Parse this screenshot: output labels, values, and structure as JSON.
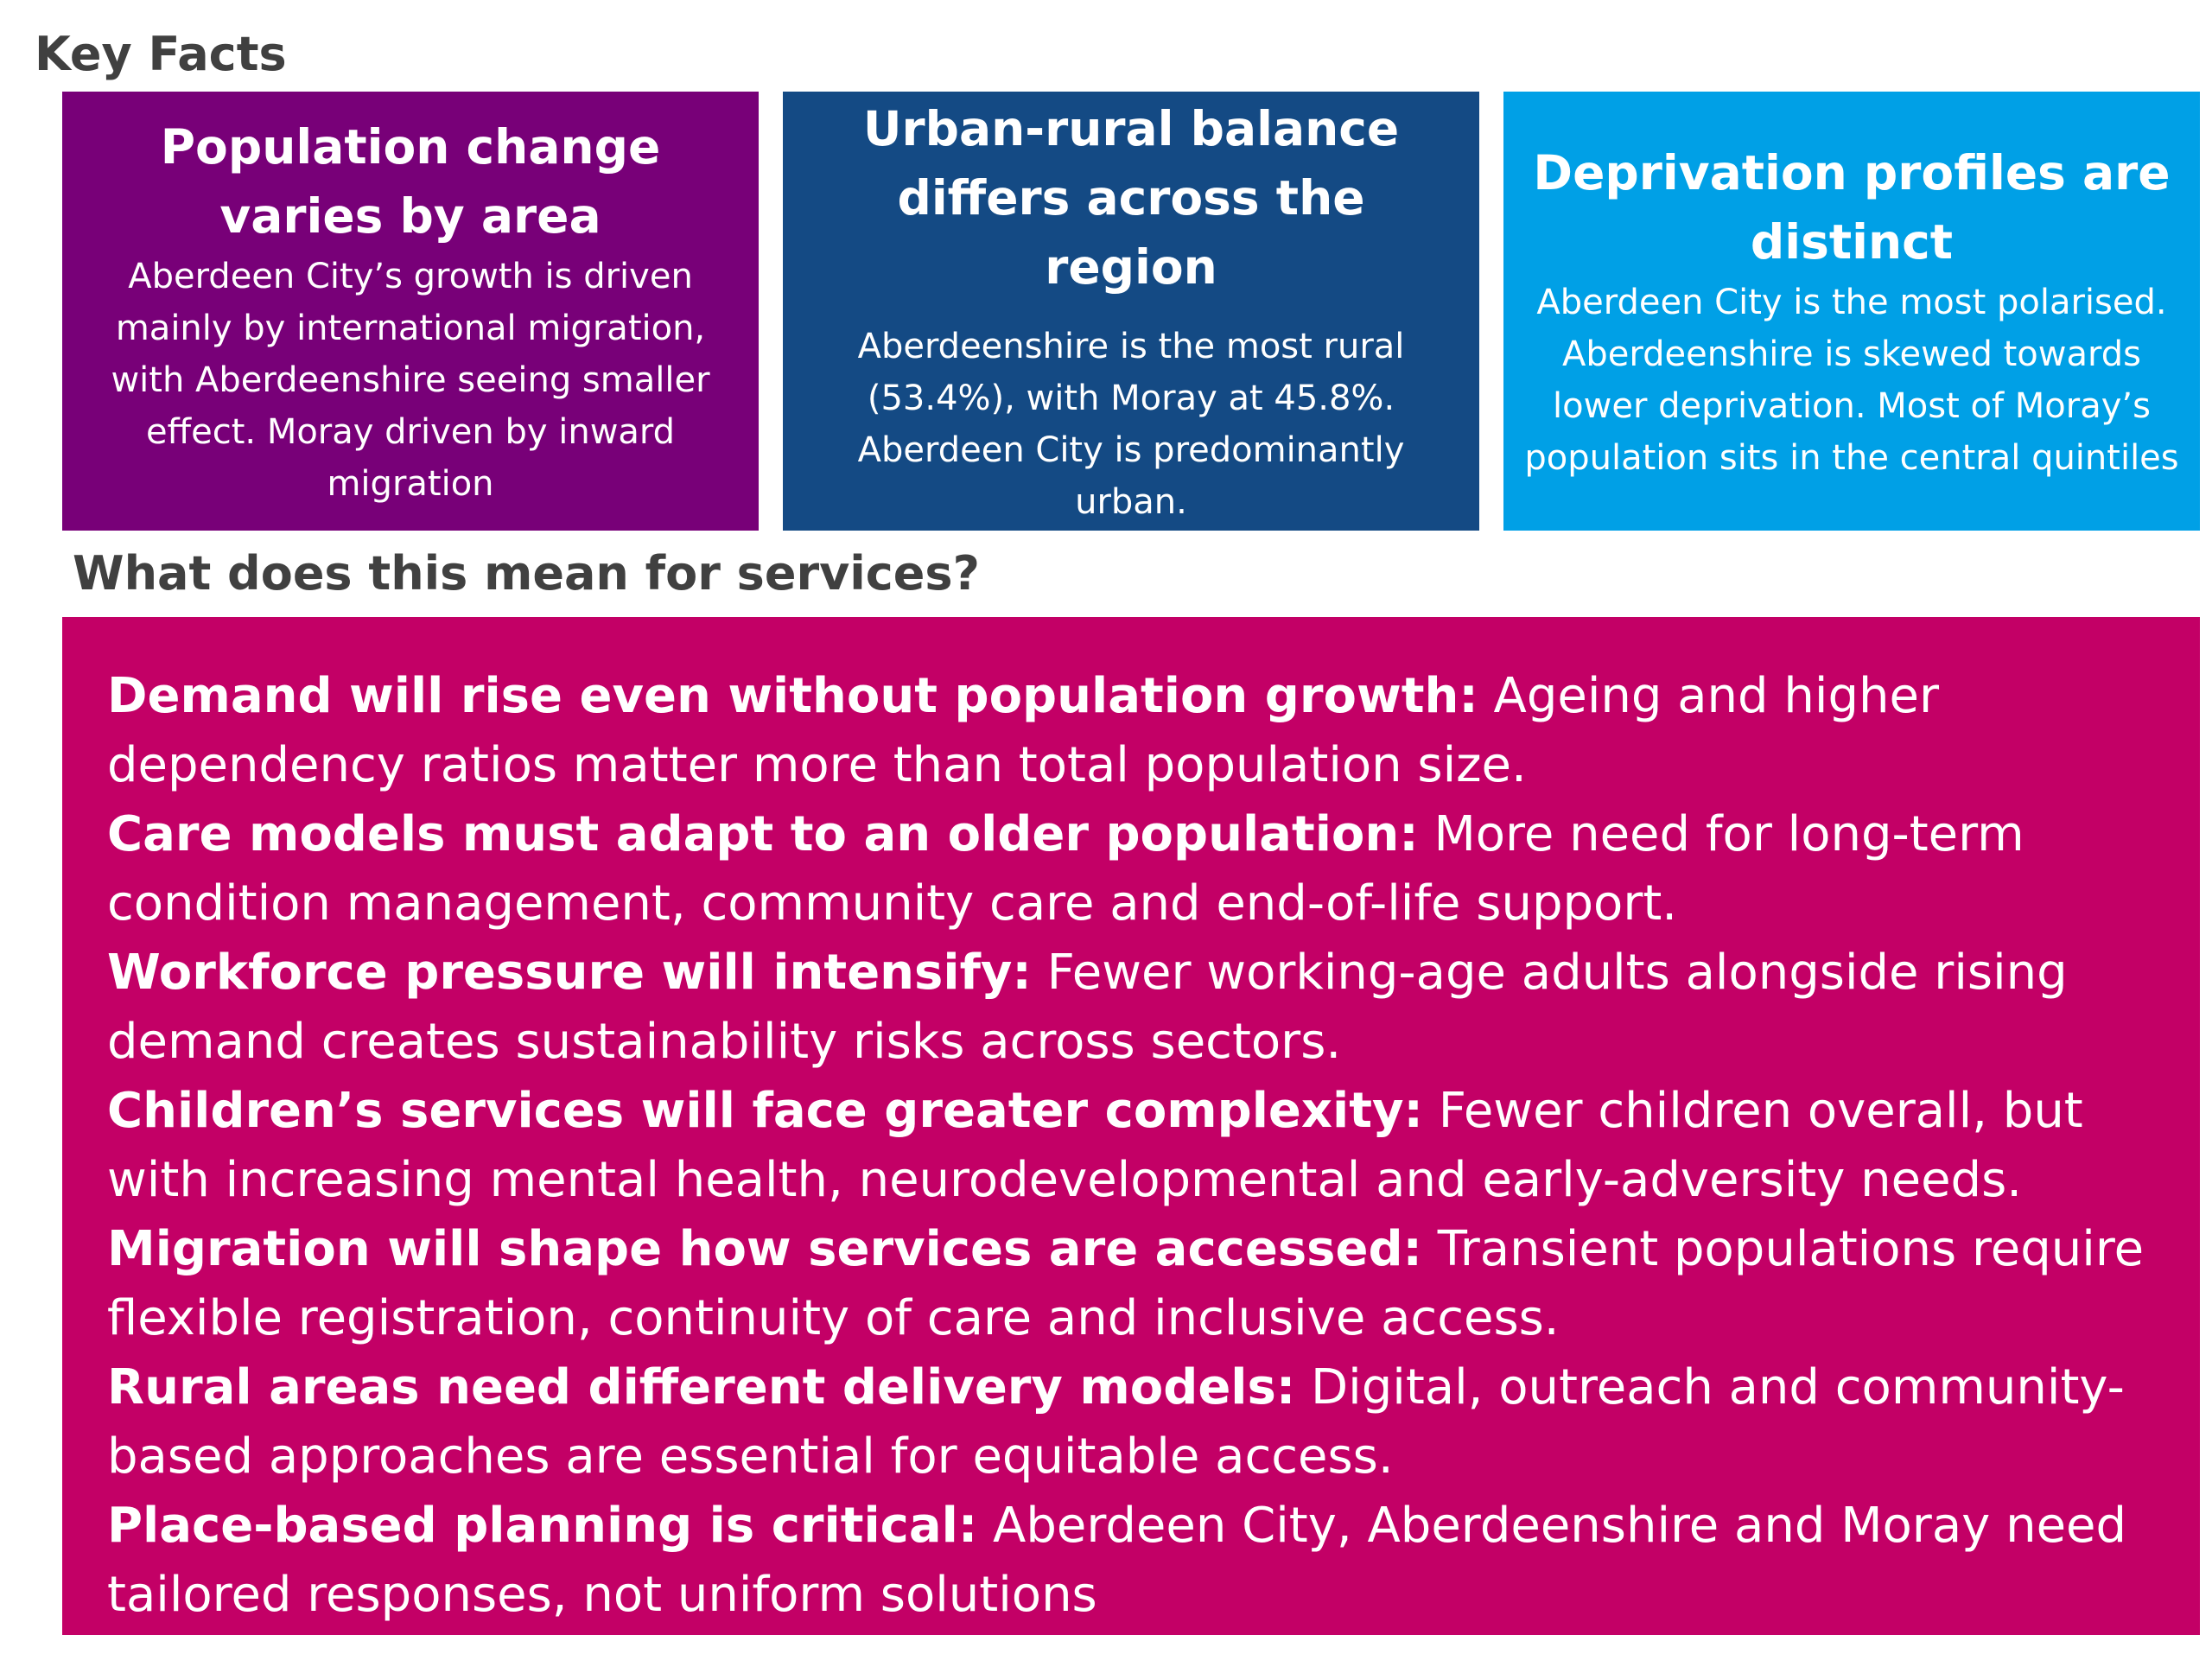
{
  "key_facts": {
    "heading": "Key Facts",
    "cards": [
      {
        "title": "Population change varies by area",
        "body": "Aberdeen City’s growth is driven mainly by international migration, with Aberdeenshire seeing smaller effect. Moray driven by inward migration",
        "color": "#780078"
      },
      {
        "title": "Urban-rural balance differs across the region",
        "body": "Aberdeenshire is the most rural (53.4%), with Moray at 45.8%. Aberdeen City is predominantly urban.",
        "color": "#144a84"
      },
      {
        "title": "Deprivation profiles are distinct",
        "body": "Aberdeen City is the most polarised. Aberdeenshire is skewed towards lower deprivation. Most of Moray’s population sits in the central quintiles",
        "color": "#00a0e6"
      }
    ]
  },
  "services": {
    "heading": "What does this mean for services?",
    "color": "#c30066",
    "items": [
      {
        "lead": "Demand will rise even without population growth:",
        "text": " Ageing and higher dependency ratios matter more than total population size."
      },
      {
        "lead": "Care models must adapt to an older population:",
        "text": " More need for long-term condition management, community care and end-of-life support."
      },
      {
        "lead": "Workforce pressure will intensify:",
        "text": " Fewer working-age adults alongside rising demand creates sustainability risks across sectors."
      },
      {
        "lead": "Children’s services will face greater complexity:",
        "text": " Fewer children overall, but with increasing mental health, neurodevelopmental and early-adversity needs."
      },
      {
        "lead": "Migration will shape how services are accessed:",
        "text": " Transient populations require flexible registration, continuity of care and inclusive access."
      },
      {
        "lead": "Rural areas need different delivery models:",
        "text": " Digital, outreach and community-based approaches are essential for equitable access."
      },
      {
        "lead": "Place-based planning is critical:",
        "text": " Aberdeen City, Aberdeenshire and Moray need tailored responses, not uniform solutions"
      }
    ]
  }
}
